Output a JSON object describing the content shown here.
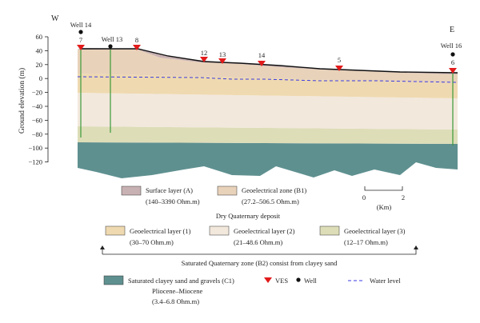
{
  "orientation": {
    "west": "W",
    "east": "E"
  },
  "axis": {
    "ylabel": "Ground elevation (m)",
    "ticks": [
      "60",
      "40",
      "20",
      "0",
      "−20",
      "−40",
      "−60",
      "−80",
      "−100",
      "−120"
    ],
    "tick_values": [
      60,
      40,
      20,
      0,
      -20,
      -40,
      -60,
      -80,
      -100,
      -120
    ]
  },
  "wells": [
    {
      "label": "Well 14",
      "position": "left"
    },
    {
      "label": "Well 13",
      "position": "near-left"
    },
    {
      "label": "Well 16",
      "position": "right"
    }
  ],
  "ves": [
    "7",
    "8",
    "12",
    "13",
    "14",
    "5",
    "6"
  ],
  "scale": {
    "start": "0",
    "end": "2",
    "unit": "(Km)"
  },
  "legend": {
    "surface_layer": {
      "name": "Surface layer (A)",
      "range": "(140–3390 Ohm.m)",
      "color": "#c8b1b3"
    },
    "geo_zone_b1": {
      "name": "Geoelectrical zone (B1)",
      "range": "(27.2–506.5 Ohm.m)",
      "color": "#e8d2b9"
    },
    "dry_group": "Dry Quaternary deposit",
    "layer1": {
      "name": "Geoelectrical layer (1)",
      "range": "(30–70 Ohm.m)",
      "color": "#efd9b0"
    },
    "layer2": {
      "name": "Geoelectrical layer (2)",
      "range": "(21–48.6 Ohm.m)",
      "color": "#f2e8dc"
    },
    "layer3": {
      "name": "Geoelectrical layer (3)",
      "range": "(12–17 Ohm.m)",
      "color": "#ddddb8"
    },
    "saturated_group": "Saturated Quaternary zone (B2) consist from clayey sand",
    "c1": {
      "name": "Saturated clayey sand and gravels (C1)",
      "sub": "Pliocene–Miocene",
      "range": "(3.4–6.8 Ohm.m)",
      "color": "#5f9090"
    },
    "ves_label": "VES",
    "well_label": "Well",
    "water_label": "Water level"
  }
}
